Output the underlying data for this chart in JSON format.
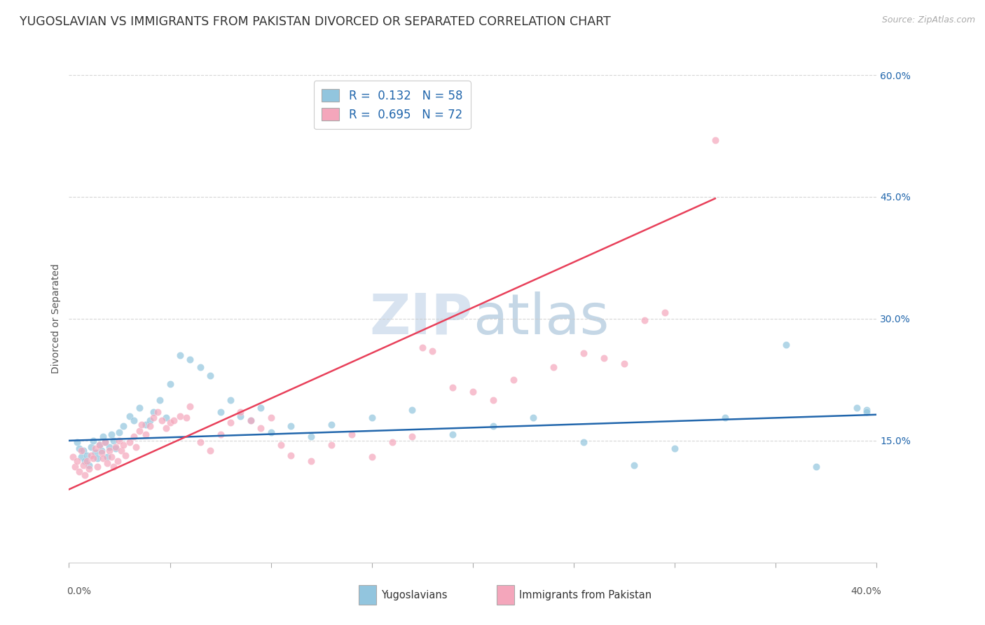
{
  "title": "YUGOSLAVIAN VS IMMIGRANTS FROM PAKISTAN DIVORCED OR SEPARATED CORRELATION CHART",
  "source": "Source: ZipAtlas.com",
  "ylabel": "Divorced or Separated",
  "xlabel_yugoslavians": "Yugoslavians",
  "xlabel_pakistan": "Immigrants from Pakistan",
  "xlim": [
    0.0,
    0.4
  ],
  "ylim": [
    0.0,
    0.6
  ],
  "xticks": [
    0.0,
    0.05,
    0.1,
    0.15,
    0.2,
    0.25,
    0.3,
    0.35,
    0.4
  ],
  "yticks": [
    0.15,
    0.3,
    0.45,
    0.6
  ],
  "ytick_labels": [
    "15.0%",
    "30.0%",
    "45.0%",
    "60.0%"
  ],
  "xtick_labels": [
    "",
    "",
    "",
    "",
    "",
    "",
    "",
    "",
    ""
  ],
  "x_corner_left": "0.0%",
  "x_corner_right": "40.0%",
  "legend_blue_r": "R =  0.132",
  "legend_blue_n": "N = 58",
  "legend_pink_r": "R =  0.695",
  "legend_pink_n": "N = 72",
  "blue_color": "#92c5de",
  "pink_color": "#f4a6bb",
  "line_blue": "#2166ac",
  "line_pink": "#e8405a",
  "watermark_zip": "ZIP",
  "watermark_atlas": "atlas",
  "background_color": "#ffffff",
  "grid_color": "#cccccc",
  "title_fontsize": 12.5,
  "source_fontsize": 9,
  "axis_label_fontsize": 10,
  "tick_fontsize": 10,
  "scatter_size": 55,
  "scatter_alpha": 0.7,
  "blue_scatter_x": [
    0.004,
    0.005,
    0.006,
    0.007,
    0.008,
    0.009,
    0.01,
    0.011,
    0.012,
    0.013,
    0.014,
    0.015,
    0.016,
    0.017,
    0.018,
    0.019,
    0.02,
    0.021,
    0.022,
    0.023,
    0.025,
    0.027,
    0.03,
    0.032,
    0.035,
    0.038,
    0.04,
    0.042,
    0.045,
    0.048,
    0.05,
    0.055,
    0.06,
    0.065,
    0.07,
    0.075,
    0.08,
    0.085,
    0.09,
    0.095,
    0.1,
    0.11,
    0.12,
    0.13,
    0.15,
    0.17,
    0.19,
    0.21,
    0.23,
    0.255,
    0.28,
    0.3,
    0.325,
    0.355,
    0.37,
    0.39,
    0.395,
    0.395
  ],
  "blue_scatter_y": [
    0.148,
    0.14,
    0.13,
    0.138,
    0.125,
    0.132,
    0.12,
    0.142,
    0.15,
    0.135,
    0.128,
    0.145,
    0.138,
    0.155,
    0.148,
    0.13,
    0.142,
    0.158,
    0.15,
    0.14,
    0.16,
    0.168,
    0.18,
    0.175,
    0.19,
    0.17,
    0.175,
    0.185,
    0.2,
    0.178,
    0.22,
    0.255,
    0.25,
    0.24,
    0.23,
    0.185,
    0.2,
    0.18,
    0.175,
    0.19,
    0.16,
    0.168,
    0.155,
    0.17,
    0.178,
    0.188,
    0.158,
    0.168,
    0.178,
    0.148,
    0.12,
    0.14,
    0.178,
    0.268,
    0.118,
    0.19,
    0.188,
    0.185
  ],
  "pink_scatter_x": [
    0.002,
    0.003,
    0.004,
    0.005,
    0.006,
    0.007,
    0.008,
    0.009,
    0.01,
    0.011,
    0.012,
    0.013,
    0.014,
    0.015,
    0.016,
    0.017,
    0.018,
    0.019,
    0.02,
    0.021,
    0.022,
    0.023,
    0.024,
    0.025,
    0.026,
    0.027,
    0.028,
    0.03,
    0.032,
    0.033,
    0.035,
    0.036,
    0.038,
    0.04,
    0.042,
    0.044,
    0.046,
    0.048,
    0.05,
    0.052,
    0.055,
    0.058,
    0.06,
    0.065,
    0.07,
    0.075,
    0.08,
    0.085,
    0.09,
    0.095,
    0.1,
    0.105,
    0.11,
    0.12,
    0.13,
    0.14,
    0.15,
    0.16,
    0.17,
    0.175,
    0.18,
    0.19,
    0.2,
    0.21,
    0.22,
    0.24,
    0.255,
    0.265,
    0.275,
    0.285,
    0.295,
    0.32
  ],
  "pink_scatter_y": [
    0.13,
    0.118,
    0.125,
    0.112,
    0.138,
    0.12,
    0.108,
    0.125,
    0.115,
    0.132,
    0.128,
    0.14,
    0.118,
    0.145,
    0.135,
    0.128,
    0.148,
    0.122,
    0.138,
    0.13,
    0.118,
    0.142,
    0.125,
    0.15,
    0.138,
    0.145,
    0.132,
    0.148,
    0.155,
    0.142,
    0.162,
    0.17,
    0.158,
    0.168,
    0.178,
    0.185,
    0.175,
    0.165,
    0.172,
    0.175,
    0.18,
    0.178,
    0.192,
    0.148,
    0.138,
    0.158,
    0.172,
    0.185,
    0.175,
    0.165,
    0.178,
    0.145,
    0.132,
    0.125,
    0.145,
    0.158,
    0.13,
    0.148,
    0.155,
    0.265,
    0.26,
    0.215,
    0.21,
    0.2,
    0.225,
    0.24,
    0.258,
    0.252,
    0.245,
    0.298,
    0.308,
    0.52
  ],
  "blue_line_x": [
    0.0,
    0.4
  ],
  "blue_line_y": [
    0.15,
    0.182
  ],
  "pink_line_x": [
    0.0,
    0.32
  ],
  "pink_line_y": [
    0.09,
    0.448
  ]
}
